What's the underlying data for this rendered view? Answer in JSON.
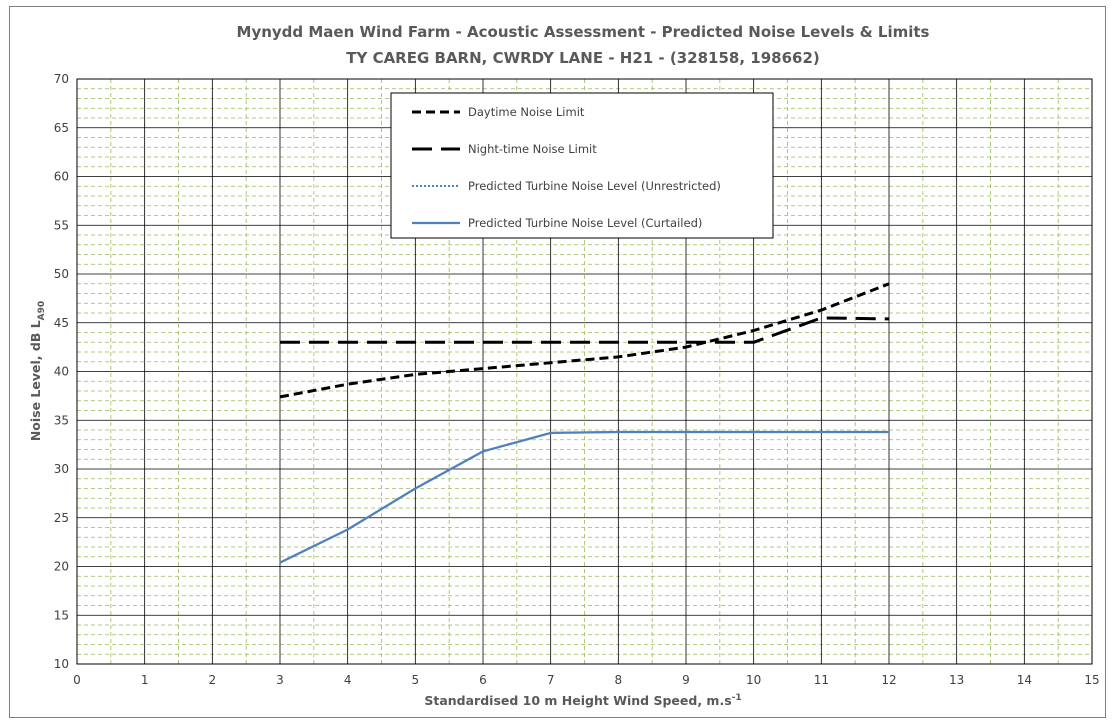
{
  "chart_data": {
    "type": "line",
    "title": "Mynydd Maen Wind Farm - Acoustic Assessment - Predicted Noise Levels & Limits",
    "subtitle": "TY CAREG BARN, CWRDY LANE - H21 - (328158, 198662)",
    "xlabel": "Standardised 10 m Height Wind Speed, m.s",
    "xlabel_sup": "-1",
    "ylabel": "Noise Level, dB L",
    "ylabel_sub": "A90",
    "xlim": [
      0,
      15
    ],
    "ylim": [
      10,
      70
    ],
    "x_ticks": [
      "0",
      "1",
      "2",
      "3",
      "4",
      "5",
      "6",
      "7",
      "8",
      "9",
      "10",
      "11",
      "12",
      "13",
      "14",
      "15"
    ],
    "y_ticks": [
      "10",
      "15",
      "20",
      "25",
      "30",
      "35",
      "40",
      "45",
      "50",
      "55",
      "60",
      "65",
      "70"
    ],
    "grid": true,
    "legend_position": "top-center",
    "series": [
      {
        "name": "Daytime Noise Limit",
        "style": "dashed-short",
        "color": "#000000",
        "x": [
          3,
          4,
          5,
          6,
          7,
          8,
          9,
          10,
          11,
          12
        ],
        "y": [
          37.4,
          38.7,
          39.7,
          40.3,
          40.9,
          41.5,
          42.5,
          44.2,
          46.3,
          49.0
        ]
      },
      {
        "name": "Night-time Noise Limit",
        "style": "dashed-long",
        "color": "#000000",
        "x": [
          3,
          4,
          5,
          6,
          7,
          8,
          9,
          10,
          11,
          12
        ],
        "y": [
          43.0,
          43.0,
          43.0,
          43.0,
          43.0,
          43.0,
          43.0,
          43.0,
          45.5,
          45.4
        ]
      },
      {
        "name": "Predicted Turbine Noise Level (Unrestricted)",
        "style": "dotted",
        "color": "#4f81bd",
        "x": [
          3,
          4,
          5,
          6,
          7,
          8,
          9,
          10,
          11,
          12
        ],
        "y": [
          20.4,
          23.8,
          28.0,
          31.8,
          33.7,
          33.8,
          33.8,
          33.8,
          33.8,
          33.8
        ]
      },
      {
        "name": "Predicted Turbine Noise Level (Curtailed)",
        "style": "solid",
        "color": "#4f81bd",
        "x": [
          3,
          4,
          5,
          6,
          7,
          8,
          9,
          10,
          11,
          12
        ],
        "y": [
          20.4,
          23.8,
          28.0,
          31.8,
          33.7,
          33.8,
          33.8,
          33.8,
          33.8,
          33.8
        ]
      }
    ]
  },
  "colors": {
    "grid_major": "#000000",
    "grid_minor": "#9bbb59",
    "curtailed": "#4f81bd",
    "limit": "#000000"
  }
}
